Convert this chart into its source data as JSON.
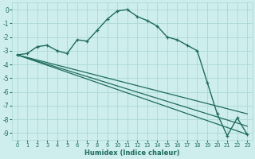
{
  "xlabel": "Humidex (Indice chaleur)",
  "bg_color": "#ceeeed",
  "grid_color": "#aad8d6",
  "line_color": "#1e6b5e",
  "xlim": [
    -0.5,
    23.5
  ],
  "ylim": [
    -9.5,
    0.5
  ],
  "xticks": [
    0,
    1,
    2,
    3,
    4,
    5,
    6,
    7,
    8,
    9,
    10,
    11,
    12,
    13,
    14,
    15,
    16,
    17,
    18,
    19,
    20,
    21,
    22,
    23
  ],
  "yticks": [
    0,
    -1,
    -2,
    -3,
    -4,
    -5,
    -6,
    -7,
    -8,
    -9
  ],
  "curve": {
    "x": [
      0,
      1,
      2,
      3,
      4,
      5,
      6,
      7,
      8,
      9,
      10,
      11,
      12,
      13,
      14,
      15,
      16,
      17,
      18,
      19,
      20,
      21,
      22,
      23
    ],
    "y": [
      -3.3,
      -3.2,
      -2.7,
      -2.6,
      -3.0,
      -3.2,
      -2.2,
      -2.3,
      -1.5,
      -0.7,
      -0.1,
      0.0,
      -0.5,
      -0.8,
      -1.2,
      -2.0,
      -2.2,
      -2.6,
      -3.0,
      -5.3,
      -7.6,
      -9.2,
      -7.9,
      -9.1
    ]
  },
  "lines": [
    {
      "x": [
        0,
        23
      ],
      "y": [
        -3.3,
        -7.6
      ]
    },
    {
      "x": [
        0,
        23
      ],
      "y": [
        -3.3,
        -8.5
      ]
    },
    {
      "x": [
        0,
        23
      ],
      "y": [
        -3.3,
        -9.1
      ]
    }
  ]
}
